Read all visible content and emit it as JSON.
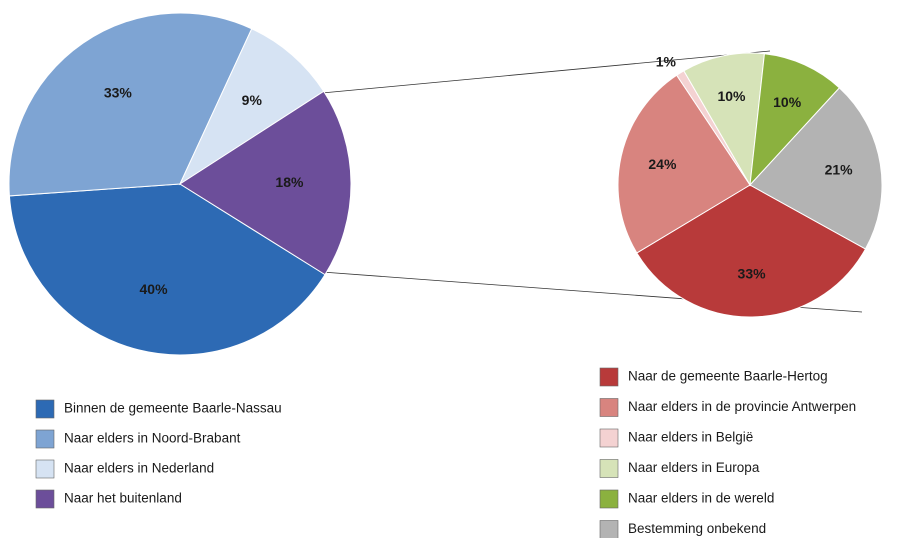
{
  "chart_data": [
    {
      "type": "pie",
      "categories": [
        "Binnen de gemeente Baarle-Nassau",
        "Naar elders in Noord-Brabant",
        "Naar elders in Nederland",
        "Naar het buitenland"
      ],
      "values": [
        40,
        33,
        9,
        18
      ],
      "value_labels": [
        "40%",
        "33%",
        "9%",
        "18%"
      ],
      "colors": [
        "#2d6ab4",
        "#7ea4d3",
        "#d6e3f3",
        "#6c4e9a"
      ]
    },
    {
      "type": "pie",
      "categories": [
        "Naar de gemeente Baarle-Hertog",
        "Naar elders in de provincie Antwerpen",
        "Naar elders in België",
        "Naar elders in Europa",
        "Naar elders in de wereld",
        "Bestemming onbekend"
      ],
      "values": [
        33,
        24,
        1,
        10,
        10,
        21
      ],
      "value_labels": [
        "33%",
        "24%",
        "1%",
        "10%",
        "10%",
        "21%"
      ],
      "colors": [
        "#b83a3a",
        "#d8847f",
        "#f4d2d2",
        "#d6e3b8",
        "#8bb13f",
        "#b3b3b3"
      ]
    }
  ]
}
